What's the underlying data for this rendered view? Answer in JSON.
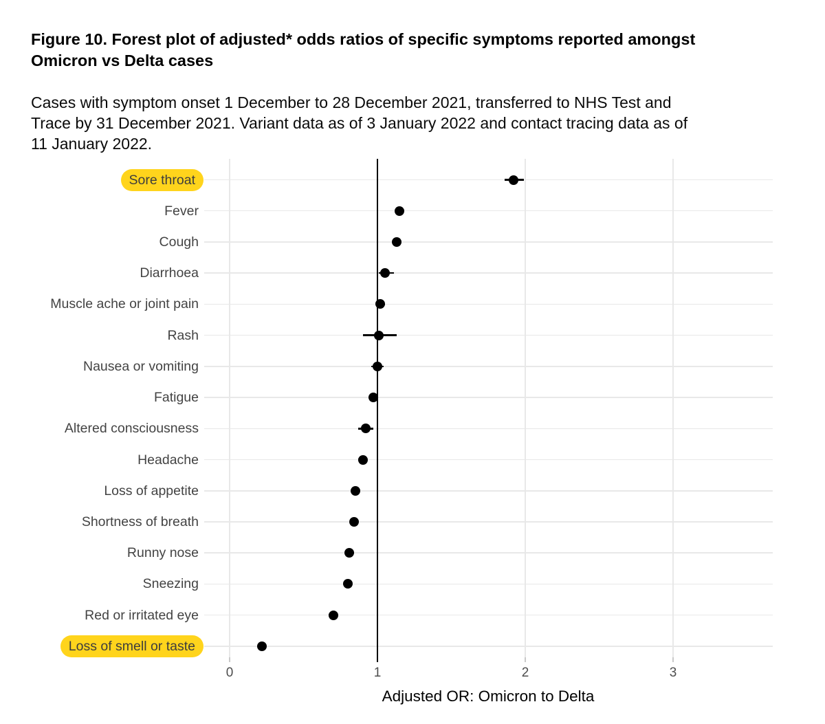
{
  "figure": {
    "title_line1": "Figure 10. Forest plot of adjusted* odds ratios of specific symptoms reported amongst",
    "title_line2": "Omicron vs Delta cases",
    "subtitle_line1": "Cases with symptom onset 1 December to 28 December 2021, transferred to NHS Test and",
    "subtitle_line2": "Trace by 31 December 2021. Variant data as of 3 January 2022 and contact tracing data as of",
    "subtitle_line3": "11 January 2022."
  },
  "colors": {
    "highlight": "#FFD41C",
    "grid": "#E8E8E8",
    "axis_text": "#4D4D4D",
    "label_text": "#434343",
    "point": "#000000"
  },
  "chart_data": {
    "type": "scatter",
    "subtype": "forest-plot",
    "title": "Figure 10. Forest plot of adjusted* odds ratios of specific symptoms reported amongst Omicron vs Delta cases",
    "xlabel": "Adjusted OR: Omicron to Delta",
    "ylabel": "",
    "xlim": [
      0,
      3.5
    ],
    "x_ticks": [
      0,
      1,
      2,
      3
    ],
    "reference_line_x": 1,
    "grid": true,
    "legend": "none",
    "rows": [
      {
        "label": "Sore throat",
        "or": 1.92,
        "ci_low": 1.86,
        "ci_high": 1.99,
        "highlighted": true
      },
      {
        "label": "Fever",
        "or": 1.15,
        "ci_low": 1.12,
        "ci_high": 1.18,
        "highlighted": false
      },
      {
        "label": "Cough",
        "or": 1.13,
        "ci_low": 1.1,
        "ci_high": 1.16,
        "highlighted": false
      },
      {
        "label": "Diarrhoea",
        "or": 1.05,
        "ci_low": 1.01,
        "ci_high": 1.11,
        "highlighted": false
      },
      {
        "label": "Muscle ache or joint pain",
        "or": 1.02,
        "ci_low": 0.99,
        "ci_high": 1.05,
        "highlighted": false
      },
      {
        "label": "Rash",
        "or": 1.01,
        "ci_low": 0.9,
        "ci_high": 1.13,
        "highlighted": false
      },
      {
        "label": "Nausea or vomiting",
        "or": 1.0,
        "ci_low": 0.96,
        "ci_high": 1.04,
        "highlighted": false
      },
      {
        "label": "Fatigue",
        "or": 0.97,
        "ci_low": 0.94,
        "ci_high": 1.0,
        "highlighted": false
      },
      {
        "label": "Altered consciousness",
        "or": 0.92,
        "ci_low": 0.87,
        "ci_high": 0.97,
        "highlighted": false
      },
      {
        "label": "Headache",
        "or": 0.9,
        "ci_low": 0.87,
        "ci_high": 0.93,
        "highlighted": false
      },
      {
        "label": "Loss of appetite",
        "or": 0.85,
        "ci_low": 0.83,
        "ci_high": 0.88,
        "highlighted": false
      },
      {
        "label": "Shortness of breath",
        "or": 0.84,
        "ci_low": 0.82,
        "ci_high": 0.87,
        "highlighted": false
      },
      {
        "label": "Runny nose",
        "or": 0.81,
        "ci_low": 0.79,
        "ci_high": 0.84,
        "highlighted": false
      },
      {
        "label": "Sneezing",
        "or": 0.8,
        "ci_low": 0.78,
        "ci_high": 0.83,
        "highlighted": false
      },
      {
        "label": "Red or irritated eye",
        "or": 0.7,
        "ci_low": 0.67,
        "ci_high": 0.72,
        "highlighted": false
      },
      {
        "label": "Loss of smell or taste",
        "or": 0.22,
        "ci_low": 0.2,
        "ci_high": 0.24,
        "highlighted": true
      }
    ]
  }
}
